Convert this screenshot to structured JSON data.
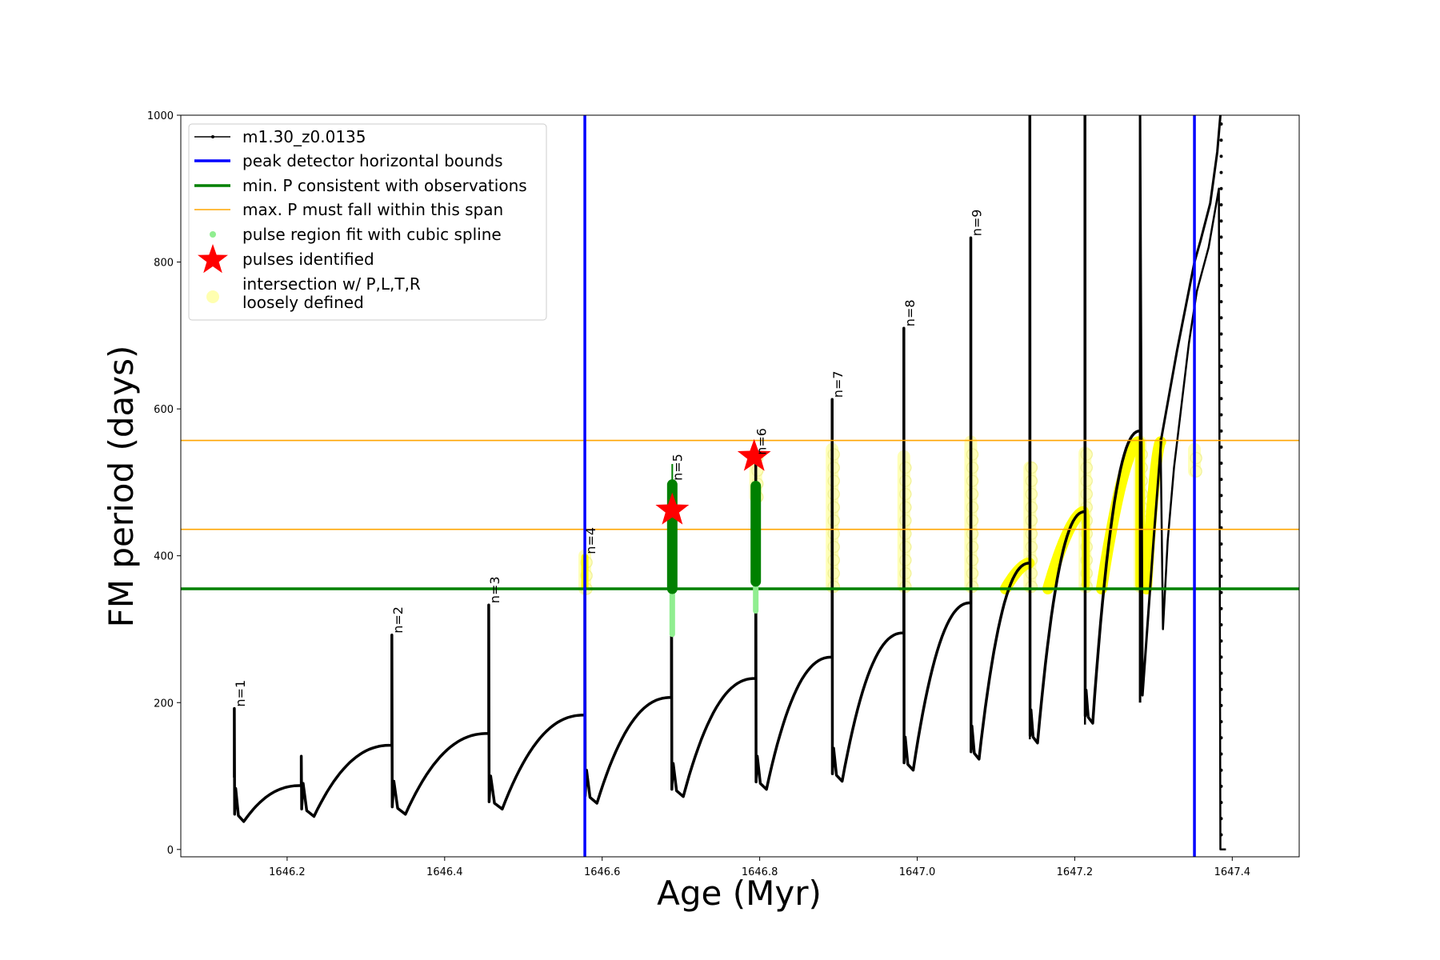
{
  "chart_data": {
    "type": "scatter",
    "xlabel": "Age (Myr)",
    "ylabel": "FM period (days)",
    "xlim": [
      1646.065,
      1647.485
    ],
    "ylim": [
      -10,
      1000
    ],
    "xticks": [
      "1646.2",
      "1646.4",
      "1646.6",
      "1646.8",
      "1647.0",
      "1647.2",
      "1647.4"
    ],
    "yticks": [
      "0",
      "200",
      "400",
      "600",
      "800",
      "1000"
    ],
    "legend_position": "upper-left",
    "legend": [
      {
        "label": "m1.30_z0.0135",
        "color": "#000000",
        "marker": "line-dot"
      },
      {
        "label": "peak detector horizontal bounds",
        "color": "#0000ff",
        "marker": "line"
      },
      {
        "label": "min. P consistent with observations",
        "color": "#008000",
        "marker": "line"
      },
      {
        "label": "max. P must fall within this span",
        "color": "#ffa500",
        "marker": "line-thin"
      },
      {
        "label": "pulse region fit with cubic spline",
        "color": "#90ee90",
        "marker": "dot"
      },
      {
        "label": "pulses identified",
        "color": "#ff0000",
        "marker": "star"
      },
      {
        "label": "intersection w/ P,L,T,R",
        "color": "#ffffb0",
        "marker": "circle"
      },
      {
        "label": "loosely defined",
        "color": "#ffffb0",
        "marker": "none"
      }
    ],
    "vertical_bounds": [
      1646.578,
      1647.352
    ],
    "min_P": 355,
    "max_P_span": [
      436,
      557
    ],
    "pulses": [
      {
        "label": "n=1",
        "x": 1646.133,
        "peak": 192,
        "end_value": 87
      },
      {
        "label": "n=2",
        "x": 1646.333,
        "peak": 292,
        "end_value": 142
      },
      {
        "label": "n=3",
        "x": 1646.456,
        "peak": 333,
        "end_value": 158
      },
      {
        "label": "n=4",
        "x": 1646.578,
        "peak": 400,
        "end_value": 183
      },
      {
        "label": "n=5",
        "x": 1646.688,
        "peak": 500,
        "end_value": 207
      },
      {
        "label": "n=6",
        "x": 1646.795,
        "peak": 535,
        "end_value": 233
      },
      {
        "label": "n=7",
        "x": 1646.892,
        "peak": 613,
        "end_value": 262
      },
      {
        "label": "n=8",
        "x": 1646.983,
        "peak": 710,
        "end_value": 295
      },
      {
        "label": "n=9",
        "x": 1647.068,
        "peak": 833,
        "end_value": 336
      }
    ],
    "extra_spike": {
      "x": 1646.218,
      "peak": 127
    },
    "tail_peaks_x": [
      1647.143,
      1647.213,
      1647.283
    ],
    "stars": [
      {
        "x": 1646.689,
        "y": 462
      },
      {
        "x": 1646.793,
        "y": 535
      }
    ],
    "green_columns": [
      {
        "x": 1646.689,
        "ymin": 355,
        "ymax": 497,
        "lightgreen_min": 293
      },
      {
        "x": 1646.795,
        "ymin": 365,
        "ymax": 495,
        "lightgreen_min": 325
      }
    ]
  }
}
